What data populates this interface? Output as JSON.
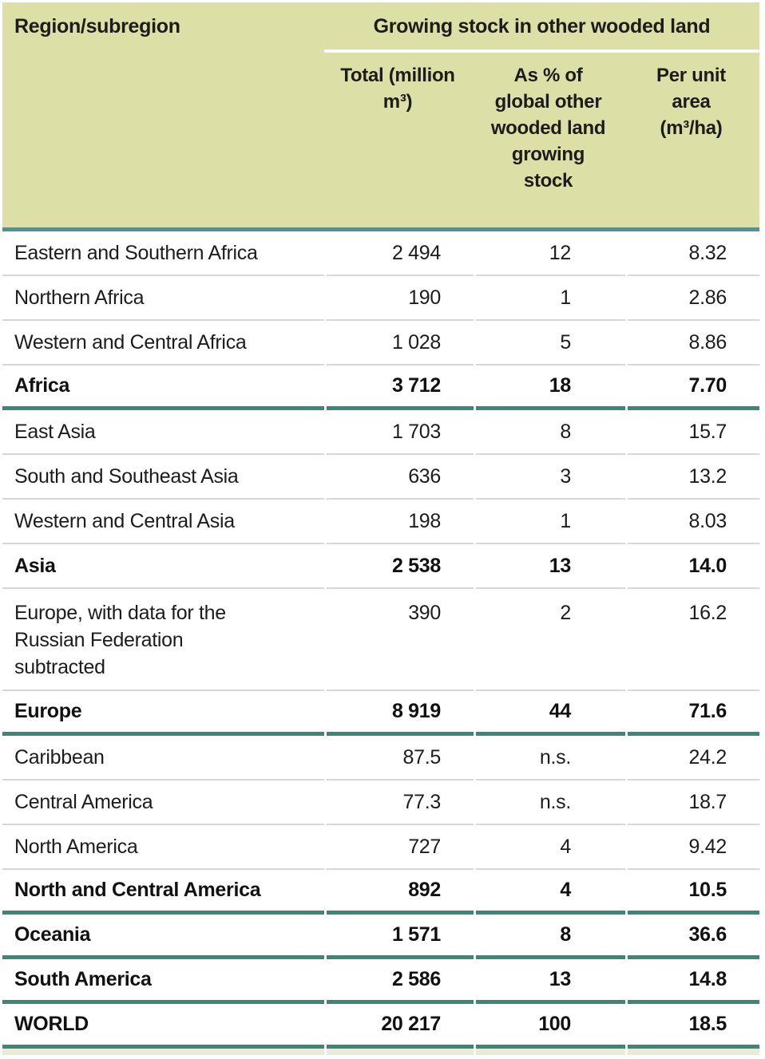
{
  "table": {
    "header": {
      "region_label": "Region/subregion",
      "group_title": "Growing stock in other wooded land",
      "columns": [
        "Total (million m³)",
        "As % of global other wooded land growing stock",
        "Per unit area (m³/ha)"
      ]
    },
    "rows": [
      {
        "region": "Eastern and Southern Africa",
        "total": "2 494",
        "share": "12",
        "per_unit": "8.32",
        "bold": false,
        "rule": "gray",
        "tall": false
      },
      {
        "region": "Northern Africa",
        "total": "190",
        "share": "1",
        "per_unit": "2.86",
        "bold": false,
        "rule": "gray",
        "tall": false
      },
      {
        "region": "Western and Central Africa",
        "total": "1 028",
        "share": "5",
        "per_unit": "8.86",
        "bold": false,
        "rule": "gray",
        "tall": false
      },
      {
        "region": "Africa",
        "total": "3 712",
        "share": "18",
        "per_unit": "7.70",
        "bold": true,
        "rule": "teal",
        "tall": false
      },
      {
        "region": "East Asia",
        "total": "1 703",
        "share": "8",
        "per_unit": "15.7",
        "bold": false,
        "rule": "gray",
        "tall": false
      },
      {
        "region": "South and Southeast Asia",
        "total": "636",
        "share": "3",
        "per_unit": "13.2",
        "bold": false,
        "rule": "gray",
        "tall": false
      },
      {
        "region": "Western and Central Asia",
        "total": "198",
        "share": "1",
        "per_unit": "8.03",
        "bold": false,
        "rule": "gray",
        "tall": false
      },
      {
        "region": "Asia",
        "total": "2 538",
        "share": "13",
        "per_unit": "14.0",
        "bold": true,
        "rule": "gray",
        "tall": false
      },
      {
        "region": "Europe, with data for the Russian Federation subtracted",
        "total": "390",
        "share": "2",
        "per_unit": "16.2",
        "bold": false,
        "rule": "gray",
        "tall": true
      },
      {
        "region": "Europe",
        "total": "8 919",
        "share": "44",
        "per_unit": "71.6",
        "bold": true,
        "rule": "teal",
        "tall": false
      },
      {
        "region": "Caribbean",
        "total": "87.5",
        "share": "n.s.",
        "per_unit": "24.2",
        "bold": false,
        "rule": "gray",
        "tall": false
      },
      {
        "region": "Central America",
        "total": "77.3",
        "share": "n.s.",
        "per_unit": "18.7",
        "bold": false,
        "rule": "gray",
        "tall": false
      },
      {
        "region": "North America",
        "total": "727",
        "share": "4",
        "per_unit": "9.42",
        "bold": false,
        "rule": "gray",
        "tall": false
      },
      {
        "region": "North and Central America",
        "total": "892",
        "share": "4",
        "per_unit": "10.5",
        "bold": true,
        "rule": "teal",
        "tall": false
      },
      {
        "region": "Oceania",
        "total": "1 571",
        "share": "8",
        "per_unit": "36.6",
        "bold": true,
        "rule": "teal",
        "tall": false
      },
      {
        "region": "South America",
        "total": "2 586",
        "share": "13",
        "per_unit": "14.8",
        "bold": true,
        "rule": "teal",
        "tall": false
      },
      {
        "region": "WORLD",
        "total": "20 217",
        "share": "100",
        "per_unit": "18.5",
        "bold": true,
        "rule": "teal",
        "tall": false
      }
    ],
    "colors": {
      "header_bg": "#dde0a6",
      "header_rule_blue": "#4e91a3",
      "group_rule_teal": "#40857a",
      "row_rule_gray": "#d7d7d7",
      "header_underline_white": "#ffffff",
      "bottom_strip": "#e9ebd8",
      "text": "#1c1c1c"
    }
  }
}
